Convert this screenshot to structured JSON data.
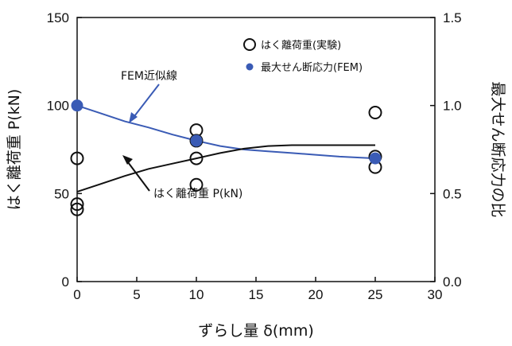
{
  "chart_data": {
    "type": "line",
    "xlabel": "ずらし量 δ(mm)",
    "ylabel_left": "はく離荷重 P(kN)",
    "ylabel_right": "最大せん断応力の比",
    "xlim": [
      0,
      30
    ],
    "ylim_left": [
      0,
      150
    ],
    "ylim_right": [
      0.0,
      1.5
    ],
    "x_ticks": [
      "0",
      "5",
      "10",
      "15",
      "20",
      "25",
      "30"
    ],
    "y_ticks_left": [
      "0",
      "50",
      "100",
      "150"
    ],
    "y_ticks_right": [
      "0.0",
      "0.5",
      "1.0",
      "1.5"
    ],
    "grid": false,
    "legend_position": "top-right",
    "legend": [
      {
        "label": "はく離荷重(実験)",
        "marker": "open-circle"
      },
      {
        "label": "最大せん断応力(FEM)",
        "marker": "filled-circle"
      }
    ],
    "annotations": [
      {
        "text": "FEM近似線",
        "points_to": "fem_line"
      },
      {
        "text": "はく離荷重 P(kN)",
        "points_to": "fit_line"
      }
    ],
    "series": [
      {
        "name": "はく離荷重(実験)",
        "kind": "scatter",
        "axis": "left",
        "color": "#111111",
        "points": [
          [
            0,
            70
          ],
          [
            0,
            44
          ],
          [
            0,
            41
          ],
          [
            10,
            86
          ],
          [
            10,
            80
          ],
          [
            10,
            70
          ],
          [
            10,
            55
          ],
          [
            25,
            96
          ],
          [
            25,
            71
          ],
          [
            25,
            65
          ]
        ]
      },
      {
        "name": "最大せん断応力(FEM)",
        "kind": "scatter",
        "axis": "right",
        "color": "#3a5bb5",
        "points": [
          [
            0,
            1.0
          ],
          [
            10,
            0.8
          ],
          [
            25,
            0.7
          ]
        ]
      },
      {
        "name": "FEM近似線",
        "kind": "line",
        "axis": "right",
        "color": "#3a5bb5",
        "points": [
          [
            0,
            1.0
          ],
          [
            2,
            0.955
          ],
          [
            4,
            0.91
          ],
          [
            6,
            0.875
          ],
          [
            8,
            0.835
          ],
          [
            10,
            0.8
          ],
          [
            12,
            0.77
          ],
          [
            14,
            0.75
          ],
          [
            16,
            0.74
          ],
          [
            18,
            0.73
          ],
          [
            20,
            0.72
          ],
          [
            22,
            0.71
          ],
          [
            25,
            0.7
          ]
        ]
      },
      {
        "name": "はく離荷重 P(kN)",
        "kind": "line",
        "axis": "left",
        "color": "#111111",
        "points": [
          [
            0,
            51
          ],
          [
            2,
            55.5
          ],
          [
            4,
            60
          ],
          [
            6,
            64
          ],
          [
            8,
            67
          ],
          [
            10,
            70
          ],
          [
            12,
            73
          ],
          [
            14,
            75.5
          ],
          [
            16,
            77
          ],
          [
            18,
            77.5
          ],
          [
            20,
            77.5
          ],
          [
            22,
            77.5
          ],
          [
            25,
            77.5
          ]
        ]
      }
    ]
  }
}
